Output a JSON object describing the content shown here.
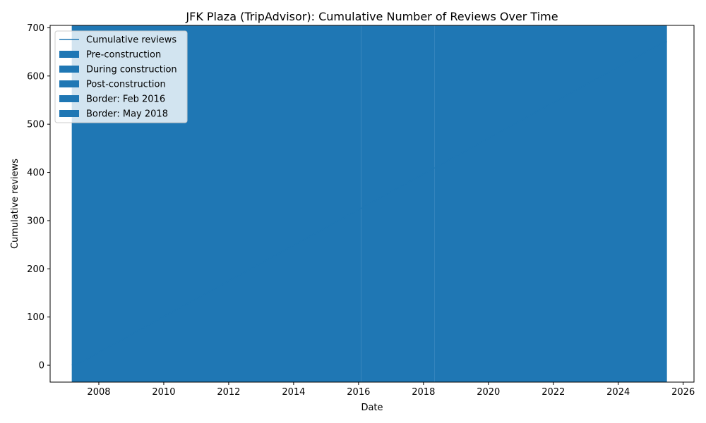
{
  "chart_data": {
    "type": "line",
    "title": "JFK Plaza (TripAdvisor): Cumulative Number of Reviews Over Time",
    "xlabel": "Date",
    "ylabel": "Cumulative reviews",
    "xlim": [
      "2006-07",
      "2026-05"
    ],
    "ylim": [
      -35,
      705
    ],
    "x_ticks": [
      "2008",
      "2010",
      "2012",
      "2014",
      "2016",
      "2018",
      "2020",
      "2022",
      "2024",
      "2026"
    ],
    "y_ticks": [
      0,
      100,
      200,
      300,
      400,
      500,
      600,
      700
    ],
    "grid": false,
    "legend_placement": "top-left",
    "series": [
      {
        "name": "Cumulative reviews",
        "type": "line",
        "color": "#1f77b4",
        "x": [
          "2007-03",
          "2007-05",
          "2025-05",
          "2025-07"
        ],
        "y": [
          1,
          2,
          668,
          671
        ]
      }
    ],
    "spans": [
      {
        "name": "Pre-construction",
        "color": "#1f77b4",
        "x_start": "2007-03",
        "x_end": "2016-02"
      },
      {
        "name": "During construction",
        "color": "#1f77b4",
        "x_start": "2016-02",
        "x_end": "2018-05"
      },
      {
        "name": "Post-construction",
        "color": "#1f77b4",
        "x_start": "2018-05",
        "x_end": "2025-07"
      },
      {
        "name": "Border: Feb 2016",
        "color": "#1f77b4",
        "x_start": "2016-02",
        "x_end": "2016-02"
      },
      {
        "name": "Border: May 2018",
        "color": "#1f77b4",
        "x_start": "2018-05",
        "x_end": "2018-05"
      }
    ]
  }
}
